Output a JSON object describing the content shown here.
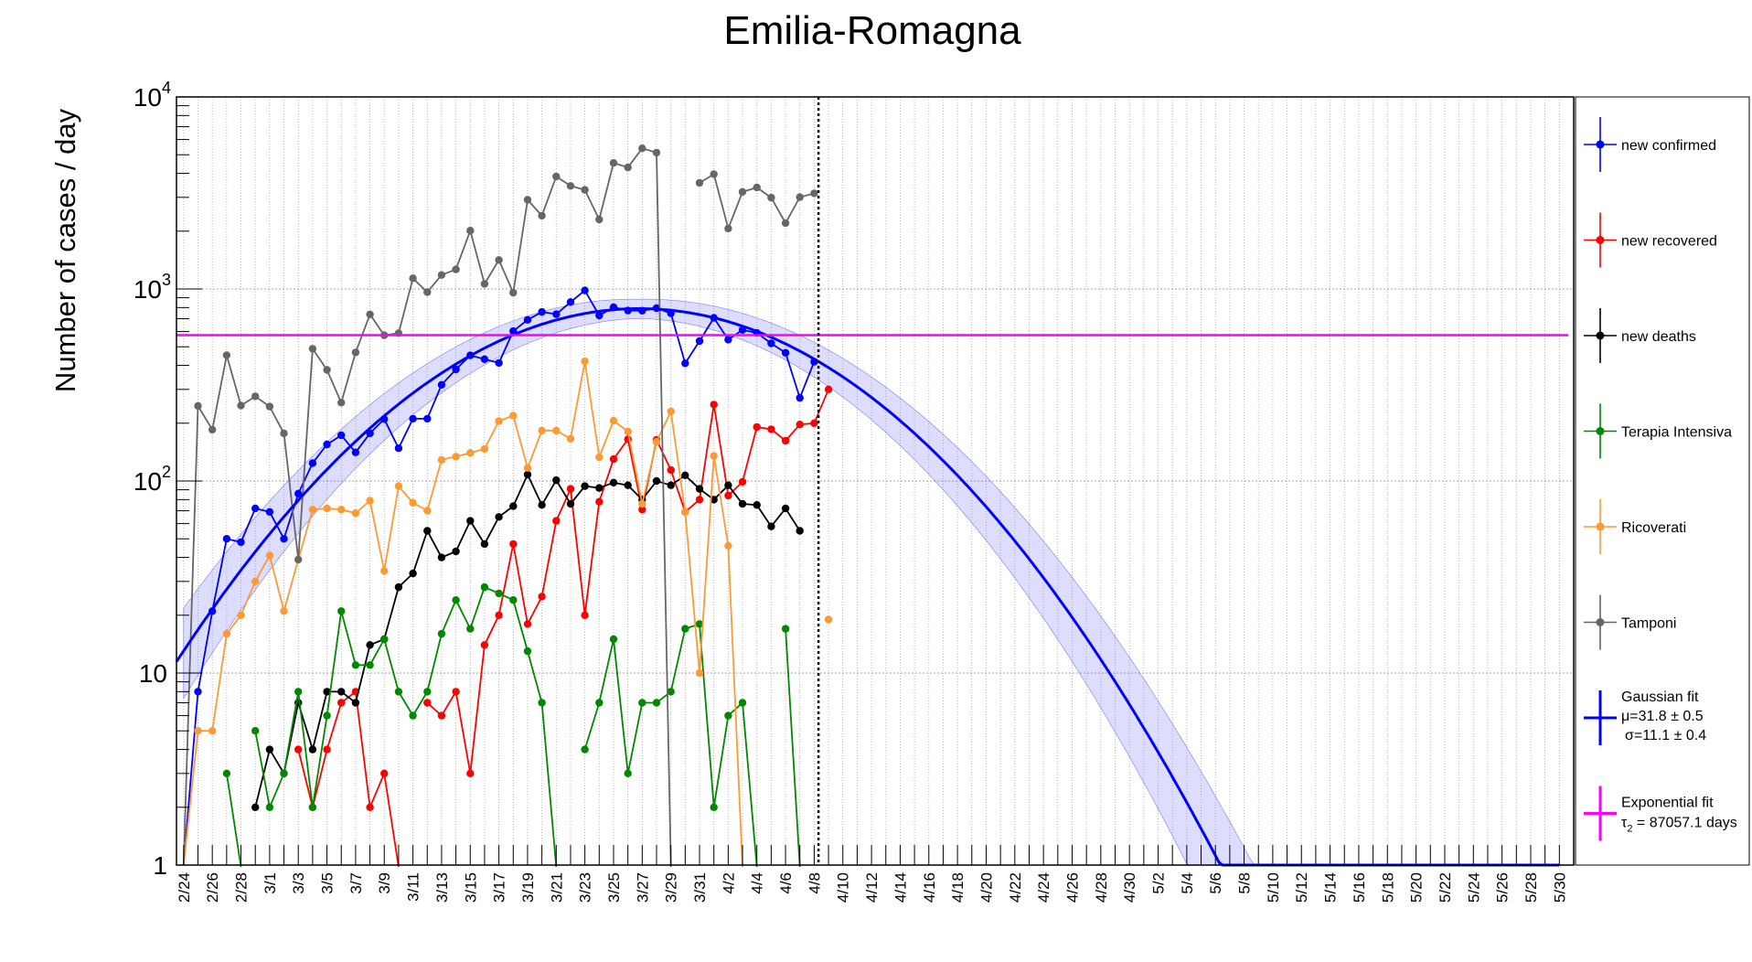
{
  "chart_data": {
    "type": "line",
    "title": "Emilia-Romagna",
    "ylabel": "Number of cases / day",
    "xlabel": "",
    "yscale": "log",
    "ylim": [
      1,
      10000
    ],
    "grid": true,
    "legend_position": "right",
    "y_ticks": [
      {
        "value": 1,
        "base": "1",
        "exp": ""
      },
      {
        "value": 10,
        "base": "10",
        "exp": ""
      },
      {
        "value": 100,
        "base": "10",
        "exp": "2"
      },
      {
        "value": 1000,
        "base": "10",
        "exp": "3"
      },
      {
        "value": 10000,
        "base": "10",
        "exp": "4"
      }
    ],
    "x_tick_labels": [
      "2/24",
      "2/26",
      "2/28",
      "3/1",
      "3/3",
      "3/5",
      "3/7",
      "3/9",
      "3/11",
      "3/13",
      "3/15",
      "3/17",
      "3/19",
      "3/21",
      "3/23",
      "3/25",
      "3/27",
      "3/29",
      "3/31",
      "4/2",
      "4/4",
      "4/6",
      "4/8",
      "4/10",
      "4/12",
      "4/14",
      "4/16",
      "4/18",
      "4/20",
      "4/22",
      "4/24",
      "4/26",
      "4/28",
      "4/30",
      "5/2",
      "5/4",
      "5/6",
      "5/8",
      "5/10",
      "5/12",
      "5/14",
      "5/16",
      "5/18",
      "5/20",
      "5/22",
      "5/24",
      "5/26",
      "5/28",
      "5/30"
    ],
    "x_tick_days": [
      0,
      2,
      4,
      6,
      8,
      10,
      12,
      14,
      16,
      18,
      20,
      22,
      24,
      26,
      28,
      30,
      32,
      34,
      36,
      38,
      40,
      42,
      44,
      46,
      48,
      50,
      52,
      54,
      56,
      58,
      60,
      62,
      64,
      66,
      68,
      70,
      72,
      74,
      76,
      78,
      80,
      82,
      84,
      86,
      88,
      90,
      92,
      94,
      96
    ],
    "x_range_days": [
      -0.5,
      97
    ],
    "today_marker_day": 44.3,
    "series": [
      {
        "name": "new confirmed",
        "color": "#0000ff",
        "values": [
          1,
          8,
          21,
          50,
          48,
          72,
          69,
          50,
          86,
          124,
          155,
          173,
          141,
          177,
          210,
          148,
          211,
          211,
          317,
          381,
          451,
          431,
          412,
          603,
          690,
          759,
          739,
          855,
          983,
          728,
          803,
          772,
          770,
          794,
          747,
          410,
          535,
          707,
          545,
          612,
          590,
          521,
          465,
          271,
          418
        ]
      },
      {
        "name": "new recovered",
        "color": "#ff0000",
        "values": [
          null,
          null,
          null,
          null,
          null,
          null,
          null,
          null,
          4,
          2,
          4,
          7,
          8,
          2,
          3,
          null,
          null,
          7,
          6,
          8,
          3,
          14,
          20,
          47,
          18,
          25,
          62,
          91,
          20,
          78,
          130,
          165,
          71,
          164,
          114,
          69,
          80,
          250,
          84,
          99,
          191,
          186,
          162,
          197,
          200,
          300
        ]
      },
      {
        "name": "new deaths",
        "color": "#000000",
        "values": [
          null,
          null,
          null,
          null,
          null,
          2,
          4,
          3,
          7,
          4,
          8,
          8,
          7,
          14,
          15,
          28,
          33,
          55,
          40,
          43,
          62,
          47,
          65,
          74,
          108,
          75,
          101,
          76,
          94,
          92,
          98,
          95,
          80,
          100,
          95,
          107,
          91,
          80,
          95,
          76,
          75,
          58,
          72,
          55
        ]
      },
      {
        "name": "Terapia Intensiva",
        "color": "#008800",
        "values": [
          null,
          null,
          null,
          3,
          null,
          5,
          2,
          3,
          8,
          2,
          6,
          21,
          11,
          11,
          15,
          8,
          6,
          8,
          16,
          24,
          17,
          28,
          26,
          24,
          13,
          7,
          null,
          null,
          4,
          7,
          15,
          3,
          7,
          7,
          8,
          17,
          18,
          2,
          6,
          7,
          null,
          null,
          17,
          null,
          null
        ]
      },
      {
        "name": "Ricoverati",
        "color": "#ff9933",
        "values": [
          1,
          5,
          5,
          16,
          20,
          30,
          41,
          21,
          39,
          71,
          72,
          71,
          68,
          79,
          34,
          94,
          77,
          70,
          129,
          134,
          140,
          147,
          205,
          219,
          117,
          183,
          183,
          166,
          420,
          133,
          206,
          181,
          76,
          160,
          230,
          69,
          10,
          135,
          46,
          null,
          null,
          null,
          null,
          null,
          null,
          19
        ]
      },
      {
        "name": "Tamponi",
        "color": "#666666",
        "values": [
          1,
          246,
          185,
          452,
          247,
          276,
          244,
          177,
          39,
          488,
          379,
          256,
          467,
          737,
          574,
          589,
          1137,
          962,
          1183,
          1265,
          2012,
          1062,
          1416,
          956,
          2912,
          2408,
          3853,
          3439,
          3281,
          2301,
          4531,
          4292,
          5402,
          5128,
          null,
          null,
          3567,
          3958,
          2065,
          3199,
          3379,
          2991,
          2201,
          3006,
          3150
        ]
      }
    ],
    "fits": [
      {
        "name": "Gaussian fit",
        "color": "#0000ff",
        "label_line1": "Gaussian fit",
        "label_line2": "μ=31.8 ± 0.5",
        "label_line3": "σ=11.1 ± 0.4",
        "mu": 31.8,
        "sigma": 11.1,
        "amplitude": 790
      },
      {
        "name": "Exponential fit",
        "color": "#ff00ff",
        "label_line1": "Exponential fit",
        "label_tau": "τ",
        "label_sub": "2",
        "label_rest": " = 87057.1 days",
        "tau": 87057.1,
        "value": 575
      }
    ]
  }
}
